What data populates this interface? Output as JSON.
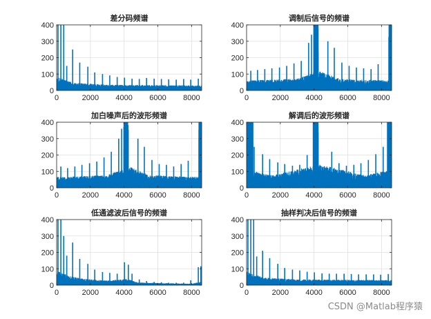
{
  "chart_data": [
    {
      "type": "line",
      "title": "差分码频谱",
      "xlim": [
        0,
        8600
      ],
      "ylim": [
        0,
        400
      ],
      "xticks": [
        0,
        2000,
        4000,
        6000,
        8000
      ],
      "yticks": [
        0,
        100,
        200,
        300,
        400
      ],
      "grid": true,
      "color": "#0072BD",
      "base": [
        [
          0,
          75
        ],
        [
          1000,
          42
        ],
        [
          3000,
          32
        ],
        [
          8600,
          28
        ]
      ],
      "peaks": [
        [
          80,
          400
        ],
        [
          250,
          400
        ],
        [
          420,
          400
        ],
        [
          600,
          150
        ],
        [
          950,
          250
        ],
        [
          1370,
          170
        ],
        [
          1850,
          145
        ],
        [
          2260,
          110
        ],
        [
          2720,
          100
        ],
        [
          3150,
          92
        ],
        [
          3590,
          82
        ],
        [
          4020,
          78
        ],
        [
          4470,
          72
        ],
        [
          4900,
          70
        ],
        [
          5330,
          76
        ],
        [
          5780,
          72
        ],
        [
          6210,
          70
        ],
        [
          6640,
          68
        ],
        [
          7090,
          66
        ],
        [
          7530,
          70
        ],
        [
          7950,
          66
        ],
        [
          8400,
          72
        ]
      ],
      "plateaus": []
    },
    {
      "type": "line",
      "title": "调制后信号的频谱",
      "xlim": [
        0,
        8600
      ],
      "ylim": [
        0,
        400
      ],
      "xticks": [
        0,
        2000,
        4000,
        6000,
        8000
      ],
      "yticks": [
        0,
        100,
        200,
        300,
        400
      ],
      "grid": true,
      "color": "#0072BD",
      "base": [
        [
          0,
          55
        ],
        [
          3000,
          65
        ],
        [
          4300,
          110
        ],
        [
          5500,
          65
        ],
        [
          8600,
          55
        ]
      ],
      "peaks": [
        [
          250,
          120
        ],
        [
          650,
          125
        ],
        [
          1080,
          130
        ],
        [
          1500,
          135
        ],
        [
          1950,
          140
        ],
        [
          2380,
          150
        ],
        [
          2810,
          165
        ],
        [
          3240,
          180
        ],
        [
          3680,
          290
        ],
        [
          3850,
          340
        ],
        [
          4820,
          300
        ],
        [
          5200,
          260
        ],
        [
          5650,
          170
        ],
        [
          6080,
          150
        ],
        [
          6510,
          140
        ],
        [
          6940,
          135
        ],
        [
          7380,
          130
        ],
        [
          7800,
          160
        ]
      ],
      "plateaus": [
        [
          3980,
          4250,
          400
        ],
        [
          8430,
          8600,
          400
        ]
      ]
    },
    {
      "type": "line",
      "title": "加白噪声后的波形频谱",
      "xlim": [
        0,
        8600
      ],
      "ylim": [
        0,
        400
      ],
      "xticks": [
        0,
        2000,
        4000,
        6000,
        8000
      ],
      "yticks": [
        0,
        100,
        200,
        300,
        400
      ],
      "grid": true,
      "color": "#0072BD",
      "base": [
        [
          0,
          60
        ],
        [
          3000,
          70
        ],
        [
          4300,
          120
        ],
        [
          5500,
          70
        ],
        [
          8600,
          60
        ]
      ],
      "peaks": [
        [
          250,
          130
        ],
        [
          650,
          120
        ],
        [
          1080,
          130
        ],
        [
          1500,
          140
        ],
        [
          1950,
          150
        ],
        [
          2380,
          160
        ],
        [
          2810,
          185
        ],
        [
          3240,
          220
        ],
        [
          3680,
          300
        ],
        [
          3850,
          360
        ],
        [
          4820,
          300
        ],
        [
          5200,
          250
        ],
        [
          5650,
          170
        ],
        [
          6080,
          145
        ],
        [
          6510,
          140
        ],
        [
          6940,
          130
        ],
        [
          7380,
          145
        ],
        [
          7800,
          165
        ]
      ],
      "plateaus": [
        [
          3980,
          4250,
          400
        ],
        [
          8430,
          8600,
          400
        ]
      ]
    },
    {
      "type": "line",
      "title": "解调后的波形频谱",
      "xlim": [
        0,
        8600
      ],
      "ylim": [
        0,
        400
      ],
      "xticks": [
        0,
        2000,
        4000,
        6000,
        8000
      ],
      "yticks": [
        0,
        100,
        200,
        300,
        400
      ],
      "grid": true,
      "color": "#0072BD",
      "base": [
        [
          0,
          100
        ],
        [
          1500,
          70
        ],
        [
          4300,
          130
        ],
        [
          7000,
          70
        ],
        [
          8600,
          100
        ]
      ],
      "peaks": [
        [
          450,
          250
        ],
        [
          950,
          205
        ],
        [
          1370,
          175
        ],
        [
          1850,
          155
        ],
        [
          2260,
          145
        ],
        [
          2720,
          135
        ],
        [
          3150,
          140
        ],
        [
          3590,
          200
        ],
        [
          5050,
          220
        ],
        [
          5480,
          150
        ],
        [
          5920,
          135
        ],
        [
          6360,
          140
        ],
        [
          6780,
          150
        ],
        [
          7220,
          170
        ],
        [
          7660,
          205
        ],
        [
          8100,
          250
        ]
      ],
      "plateaus": [
        [
          0,
          380,
          400
        ],
        [
          3950,
          4250,
          400
        ],
        [
          8350,
          8600,
          400
        ]
      ]
    },
    {
      "type": "line",
      "title": "低通滤波后信号的频谱",
      "xlim": [
        0,
        8600
      ],
      "ylim": [
        0,
        400
      ],
      "xticks": [
        0,
        2000,
        4000,
        6000,
        8000
      ],
      "yticks": [
        0,
        100,
        200,
        300,
        400
      ],
      "grid": true,
      "color": "#0072BD",
      "base": [
        [
          0,
          80
        ],
        [
          800,
          50
        ],
        [
          1600,
          35
        ],
        [
          3000,
          25
        ],
        [
          4200,
          35
        ],
        [
          4800,
          15
        ],
        [
          8000,
          8
        ],
        [
          8600,
          20
        ]
      ],
      "peaks": [
        [
          80,
          400
        ],
        [
          250,
          400
        ],
        [
          420,
          300
        ],
        [
          600,
          180
        ],
        [
          950,
          260
        ],
        [
          1370,
          160
        ],
        [
          1850,
          130
        ],
        [
          2260,
          95
        ],
        [
          2720,
          80
        ],
        [
          3150,
          75
        ],
        [
          3590,
          70
        ],
        [
          4020,
          140
        ],
        [
          4250,
          125
        ],
        [
          4470,
          70
        ],
        [
          4900,
          35
        ],
        [
          5330,
          25
        ],
        [
          5780,
          20
        ],
        [
          6210,
          18
        ],
        [
          6640,
          15
        ],
        [
          7090,
          15
        ],
        [
          7530,
          15
        ],
        [
          7950,
          30
        ],
        [
          8400,
          110
        ],
        [
          8550,
          115
        ]
      ],
      "plateaus": []
    },
    {
      "type": "line",
      "title": "抽样判决后信号的频谱",
      "xlim": [
        0,
        8600
      ],
      "ylim": [
        0,
        400
      ],
      "xticks": [
        0,
        2000,
        4000,
        6000,
        8000
      ],
      "yticks": [
        0,
        100,
        200,
        300,
        400
      ],
      "grid": true,
      "color": "#0072BD",
      "base": [
        [
          0,
          75
        ],
        [
          1000,
          42
        ],
        [
          3000,
          32
        ],
        [
          8600,
          28
        ]
      ],
      "peaks": [
        [
          80,
          400
        ],
        [
          250,
          400
        ],
        [
          420,
          400
        ],
        [
          600,
          175
        ],
        [
          950,
          210
        ],
        [
          1370,
          165
        ],
        [
          1850,
          130
        ],
        [
          2260,
          105
        ],
        [
          2720,
          95
        ],
        [
          3150,
          90
        ],
        [
          3590,
          82
        ],
        [
          4020,
          78
        ],
        [
          4470,
          72
        ],
        [
          4900,
          70
        ],
        [
          5330,
          70
        ],
        [
          5780,
          70
        ],
        [
          6210,
          68
        ],
        [
          6640,
          66
        ],
        [
          7090,
          66
        ],
        [
          7530,
          66
        ],
        [
          7950,
          64
        ],
        [
          8400,
          68
        ]
      ],
      "plateaus": []
    }
  ],
  "watermark": "CSDN @Matlab程序猿"
}
